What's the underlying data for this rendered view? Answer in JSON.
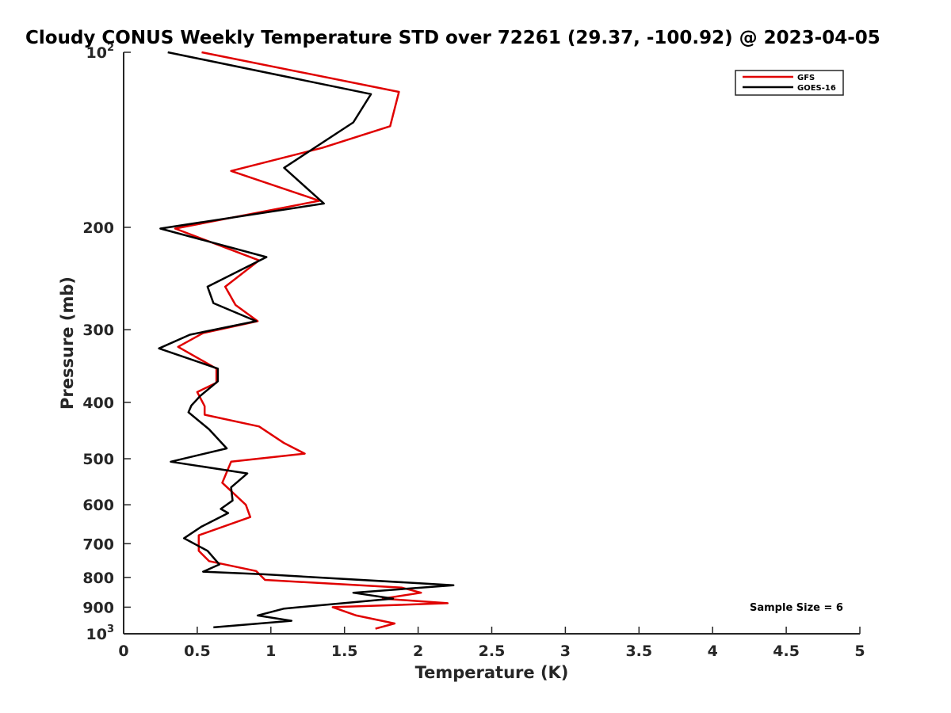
{
  "chart_data": {
    "type": "line",
    "title": "Cloudy CONUS Weekly Temperature STD over 72261 (29.37, -100.92) @ 2023-04-05",
    "xlabel": "Temperature (K)",
    "ylabel": "Pressure (mb)",
    "xlim": [
      0,
      5
    ],
    "ylim": [
      100,
      1000
    ],
    "y_scale": "log",
    "y_reversed": true,
    "x_ticks": [
      "0",
      "0.5",
      "1",
      "1.5",
      "2",
      "2.5",
      "3",
      "3.5",
      "4",
      "4.5",
      "5"
    ],
    "x_tick_values": [
      0,
      0.5,
      1,
      1.5,
      2,
      2.5,
      3,
      3.5,
      4,
      4.5,
      5
    ],
    "y_ticks": [
      {
        "value": 100,
        "base": "10",
        "exp": "2",
        "label": ""
      },
      {
        "value": 200,
        "label": "200"
      },
      {
        "value": 300,
        "label": "300"
      },
      {
        "value": 400,
        "label": "400"
      },
      {
        "value": 500,
        "label": "500"
      },
      {
        "value": 600,
        "label": "600"
      },
      {
        "value": 700,
        "label": "700"
      },
      {
        "value": 800,
        "label": "800"
      },
      {
        "value": 900,
        "label": "900"
      },
      {
        "value": 1000,
        "base": "10",
        "exp": "3",
        "label": ""
      }
    ],
    "grid": false,
    "legend_position": "top-right",
    "annotation": "Sample Size = 6",
    "series": [
      {
        "name": "GFS",
        "color": "#e00000",
        "points": [
          [
            0.53,
            100
          ],
          [
            1.87,
            117
          ],
          [
            1.81,
            134
          ],
          [
            1.35,
            146
          ],
          [
            0.73,
            160
          ],
          [
            1.33,
            180
          ],
          [
            0.35,
            201
          ],
          [
            0.92,
            228
          ],
          [
            0.69,
            253
          ],
          [
            0.76,
            272
          ],
          [
            0.91,
            290
          ],
          [
            0.54,
            304
          ],
          [
            0.37,
            321
          ],
          [
            0.63,
            350
          ],
          [
            0.63,
            370
          ],
          [
            0.5,
            384
          ],
          [
            0.55,
            406
          ],
          [
            0.55,
            420
          ],
          [
            0.92,
            440
          ],
          [
            1.09,
            470
          ],
          [
            1.23,
            490
          ],
          [
            0.73,
            506
          ],
          [
            0.67,
            550
          ],
          [
            0.83,
            600
          ],
          [
            0.86,
            630
          ],
          [
            0.51,
            677
          ],
          [
            0.51,
            720
          ],
          [
            0.58,
            750
          ],
          [
            0.9,
            780
          ],
          [
            0.96,
            808
          ],
          [
            1.89,
            833
          ],
          [
            2.02,
            850
          ],
          [
            1.76,
            870
          ],
          [
            2.2,
            886
          ],
          [
            1.42,
            900
          ],
          [
            1.58,
            930
          ],
          [
            1.84,
            960
          ],
          [
            1.71,
            980
          ]
        ]
      },
      {
        "name": "GOES-16",
        "color": "#000000",
        "points": [
          [
            0.3,
            100
          ],
          [
            1.68,
            118
          ],
          [
            1.56,
            132
          ],
          [
            1.09,
            158
          ],
          [
            1.36,
            182
          ],
          [
            0.25,
            201
          ],
          [
            0.97,
            225
          ],
          [
            0.57,
            253
          ],
          [
            0.61,
            270
          ],
          [
            0.9,
            290
          ],
          [
            0.45,
            306
          ],
          [
            0.24,
            323
          ],
          [
            0.64,
            350
          ],
          [
            0.64,
            368
          ],
          [
            0.52,
            390
          ],
          [
            0.46,
            405
          ],
          [
            0.44,
            416
          ],
          [
            0.58,
            445
          ],
          [
            0.7,
            480
          ],
          [
            0.32,
            506
          ],
          [
            0.84,
            530
          ],
          [
            0.73,
            560
          ],
          [
            0.74,
            590
          ],
          [
            0.66,
            610
          ],
          [
            0.71,
            620
          ],
          [
            0.53,
            654
          ],
          [
            0.41,
            685
          ],
          [
            0.57,
            720
          ],
          [
            0.65,
            760
          ],
          [
            0.54,
            782
          ],
          [
            0.95,
            790
          ],
          [
            2.24,
            825
          ],
          [
            1.56,
            850
          ],
          [
            1.83,
            870
          ],
          [
            1.09,
            905
          ],
          [
            0.91,
            930
          ],
          [
            1.14,
            950
          ],
          [
            0.61,
            975
          ]
        ]
      }
    ]
  }
}
